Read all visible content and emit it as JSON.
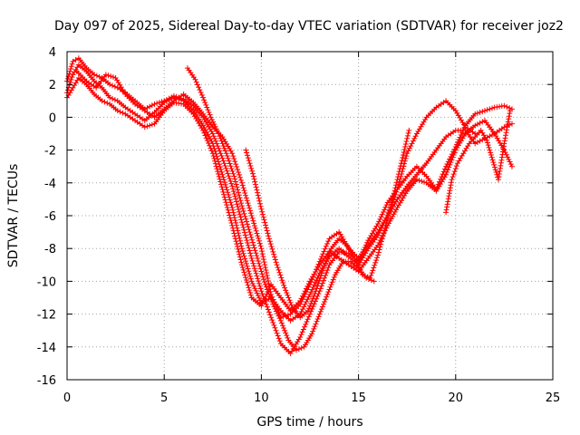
{
  "chart_data": {
    "type": "scatter",
    "title": "Day 097 of 2025, Sidereal Day-to-day VTEC variation (SDTVAR) for receiver joz2",
    "xlabel": "GPS time / hours",
    "ylabel": "SDTVAR / TECUs",
    "xlim": [
      0,
      25
    ],
    "ylim": [
      -16,
      4
    ],
    "xticks": [
      "0",
      "5",
      "10",
      "15",
      "20",
      "25"
    ],
    "yticks": [
      "-16",
      "-14",
      "-12",
      "-10",
      "-8",
      "-6",
      "-4",
      "-2",
      "0",
      "2",
      "4"
    ],
    "grid": true,
    "marker": "+",
    "color": "#ff0000",
    "series": [
      {
        "x": [
          0.0,
          0.3,
          0.6,
          1.0,
          1.4,
          1.8,
          2.2,
          2.6,
          3.0,
          3.5,
          4.0,
          4.5,
          5.0,
          5.5,
          6.0,
          6.5,
          7.0,
          7.5,
          8.0,
          8.5,
          9.0,
          9.5,
          10.0,
          10.5,
          11.0,
          11.5,
          12.0,
          12.5,
          13.0,
          13.5,
          14.0,
          14.5,
          15.0,
          15.5,
          16.0,
          16.5,
          17.0,
          17.5,
          18.0,
          18.5,
          19.0,
          19.5,
          20.0,
          20.5,
          21.0,
          21.5,
          22.0,
          22.5,
          22.9
        ],
        "y": [
          1.5,
          2.6,
          3.2,
          2.8,
          2.2,
          1.8,
          1.2,
          1.0,
          0.6,
          0.2,
          -0.2,
          0.3,
          0.9,
          1.2,
          1.0,
          0.4,
          -0.5,
          -1.6,
          -3.5,
          -5.5,
          -8.0,
          -10.0,
          -11.3,
          -11.0,
          -11.8,
          -12.4,
          -12.0,
          -10.8,
          -9.5,
          -8.5,
          -8.0,
          -8.5,
          -9.0,
          -8.0,
          -7.2,
          -6.0,
          -5.0,
          -4.2,
          -3.5,
          -2.8,
          -2.0,
          -1.2,
          -0.8,
          -0.8,
          -1.6,
          -1.3,
          -1.0,
          -0.6,
          -0.4
        ]
      },
      {
        "x": [
          0.0,
          0.3,
          0.6,
          1.0,
          1.4,
          1.8,
          2.2,
          2.6,
          3.0,
          3.5,
          4.0,
          4.5,
          5.0,
          5.5,
          6.0,
          6.5,
          7.0,
          7.5,
          8.0,
          8.5,
          9.0,
          9.5,
          10.0,
          10.5,
          11.0,
          11.5,
          12.0,
          12.5,
          13.0,
          13.5,
          14.0,
          14.5,
          15.0,
          15.5,
          16.0,
          16.5,
          17.0,
          17.5,
          18.0,
          18.5,
          19.0,
          19.5,
          20.0,
          20.5,
          21.0,
          21.5,
          22.0,
          22.5,
          22.9
        ],
        "y": [
          2.2,
          3.4,
          3.6,
          3.0,
          2.6,
          2.4,
          2.0,
          1.8,
          1.5,
          1.0,
          0.5,
          0.8,
          1.0,
          1.3,
          1.1,
          0.7,
          0.0,
          -1.0,
          -2.5,
          -4.2,
          -6.4,
          -8.6,
          -10.6,
          -12.2,
          -13.8,
          -14.4,
          -13.4,
          -12.0,
          -10.6,
          -9.0,
          -8.2,
          -8.3,
          -8.8,
          -7.5,
          -6.5,
          -5.2,
          -4.4,
          -3.6,
          -3.0,
          -3.6,
          -4.4,
          -3.0,
          -1.8,
          -0.5,
          0.2,
          0.4,
          0.6,
          0.7,
          0.5
        ]
      },
      {
        "x": [
          0.0,
          0.3,
          0.6,
          1.0,
          1.4,
          1.8,
          2.2,
          2.6,
          3.0,
          3.5,
          4.0,
          4.5,
          5.0,
          5.5,
          6.0,
          6.5,
          7.0,
          7.5,
          8.0,
          8.5,
          9.0,
          9.5,
          10.0,
          10.5,
          11.0,
          11.5,
          12.0,
          12.5,
          13.0,
          13.5,
          14.0,
          14.5,
          15.0,
          15.5,
          16.0,
          16.5,
          17.0,
          17.5,
          18.0,
          18.5,
          19.0,
          19.5,
          20.0,
          20.5,
          21.0,
          21.5,
          22.0,
          22.5,
          22.9
        ],
        "y": [
          1.2,
          1.8,
          2.4,
          2.0,
          1.4,
          1.0,
          0.8,
          0.4,
          0.2,
          -0.2,
          -0.6,
          -0.4,
          0.4,
          0.9,
          0.8,
          0.2,
          -0.8,
          -2.2,
          -4.4,
          -6.6,
          -9.0,
          -11.0,
          -11.5,
          -10.2,
          -11.0,
          -11.8,
          -11.2,
          -10.0,
          -9.0,
          -8.2,
          -8.6,
          -9.0,
          -9.4,
          -8.6,
          -7.8,
          -6.6,
          -5.5,
          -4.5,
          -3.8,
          -4.0,
          -4.5,
          -3.5,
          -2.0,
          -1.0,
          -0.5,
          -0.2,
          -1.0,
          -2.0,
          -3.0
        ]
      },
      {
        "x": [
          0.5,
          1.0,
          1.5,
          2.0,
          2.5,
          3.0,
          3.5,
          4.0,
          4.5,
          5.0,
          5.5,
          6.0,
          6.5,
          7.0,
          7.5,
          8.0,
          8.5,
          9.0,
          9.5,
          10.0,
          10.5,
          11.0,
          11.5,
          12.0,
          12.5,
          13.0,
          13.5,
          14.0,
          14.5,
          15.0,
          15.5,
          16.0,
          16.5,
          17.0,
          17.5,
          18.0,
          18.5,
          19.0,
          19.5,
          20.0,
          20.5,
          21.0
        ],
        "y": [
          2.8,
          2.2,
          1.8,
          2.6,
          2.4,
          1.4,
          0.8,
          0.4,
          0.0,
          0.5,
          1.0,
          1.4,
          0.9,
          0.2,
          -0.6,
          -1.2,
          -2.2,
          -4.0,
          -6.0,
          -8.0,
          -10.8,
          -12.2,
          -12.0,
          -11.4,
          -10.2,
          -8.8,
          -7.4,
          -7.0,
          -8.0,
          -8.6,
          -7.8,
          -7.0,
          -6.0,
          -4.4,
          -2.2,
          -1.0,
          0.0,
          0.6,
          1.0,
          0.4,
          -0.6,
          -1.0
        ]
      },
      {
        "x": [
          6.2,
          6.6,
          7.0,
          7.4,
          7.8,
          8.2,
          8.6,
          9.0,
          9.4,
          9.8,
          10.2,
          10.6,
          11.0,
          11.4,
          11.8,
          12.2,
          12.6,
          13.0,
          13.4,
          13.8,
          14.2,
          14.6,
          15.0,
          15.4,
          15.8
        ],
        "y": [
          3.0,
          2.3,
          1.2,
          0.0,
          -1.0,
          -2.2,
          -3.6,
          -5.4,
          -7.0,
          -8.6,
          -10.2,
          -11.4,
          -12.4,
          -13.6,
          -14.2,
          -14.0,
          -13.2,
          -12.0,
          -10.8,
          -9.6,
          -8.8,
          -8.8,
          -9.2,
          -9.8,
          -10.0
        ]
      },
      {
        "x": [
          9.2,
          9.6,
          10.0,
          10.4,
          10.8,
          11.2,
          11.6,
          12.0,
          12.4,
          12.8,
          13.2,
          13.6,
          14.0,
          14.4,
          14.8,
          15.2,
          15.6,
          16.0,
          16.4,
          16.8,
          17.2,
          17.6
        ],
        "y": [
          -2.0,
          -3.6,
          -5.6,
          -7.4,
          -9.0,
          -10.4,
          -11.6,
          -12.2,
          -11.8,
          -10.6,
          -9.2,
          -8.0,
          -7.4,
          -7.8,
          -8.6,
          -9.6,
          -9.8,
          -8.4,
          -6.6,
          -4.8,
          -2.8,
          -0.8
        ]
      },
      {
        "x": [
          19.5,
          19.8,
          20.1,
          20.4,
          20.7,
          21.0,
          21.3,
          21.6,
          21.9,
          22.2,
          22.5,
          22.8
        ],
        "y": [
          -5.8,
          -3.8,
          -2.8,
          -2.2,
          -1.6,
          -1.2,
          -0.8,
          -1.4,
          -2.6,
          -3.8,
          -1.6,
          0.4
        ]
      }
    ]
  }
}
